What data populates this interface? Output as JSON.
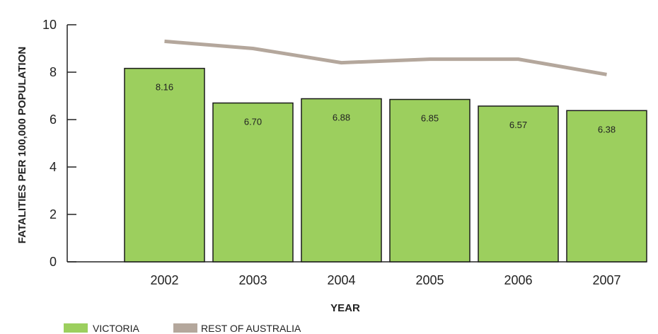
{
  "chart_data": {
    "type": "bar",
    "categories": [
      "2002",
      "2003",
      "2004",
      "2005",
      "2006",
      "2007"
    ],
    "series": [
      {
        "name": "VICTORIA",
        "kind": "bar",
        "values": [
          8.16,
          6.7,
          6.88,
          6.85,
          6.57,
          6.38
        ],
        "data_labels": [
          "8.16",
          "6.70",
          "6.88",
          "6.85",
          "6.57",
          "6.38"
        ]
      },
      {
        "name": "REST OF AUSTRALIA",
        "kind": "line",
        "values": [
          9.3,
          9.0,
          8.4,
          8.55,
          8.55,
          7.9
        ]
      }
    ],
    "xlabel": "YEAR",
    "ylabel": "FATALITIES PER 100,000 POPULATION",
    "ylim": [
      0,
      10
    ],
    "yticks": [
      0,
      2,
      4,
      6,
      8,
      10
    ],
    "grid": false,
    "legend_position": "bottom-left",
    "colors": {
      "bar_fill": "#9ccf5e",
      "bar_stroke": "#1a1a1a",
      "line": "#b4a79c",
      "axis": "#222222"
    }
  }
}
